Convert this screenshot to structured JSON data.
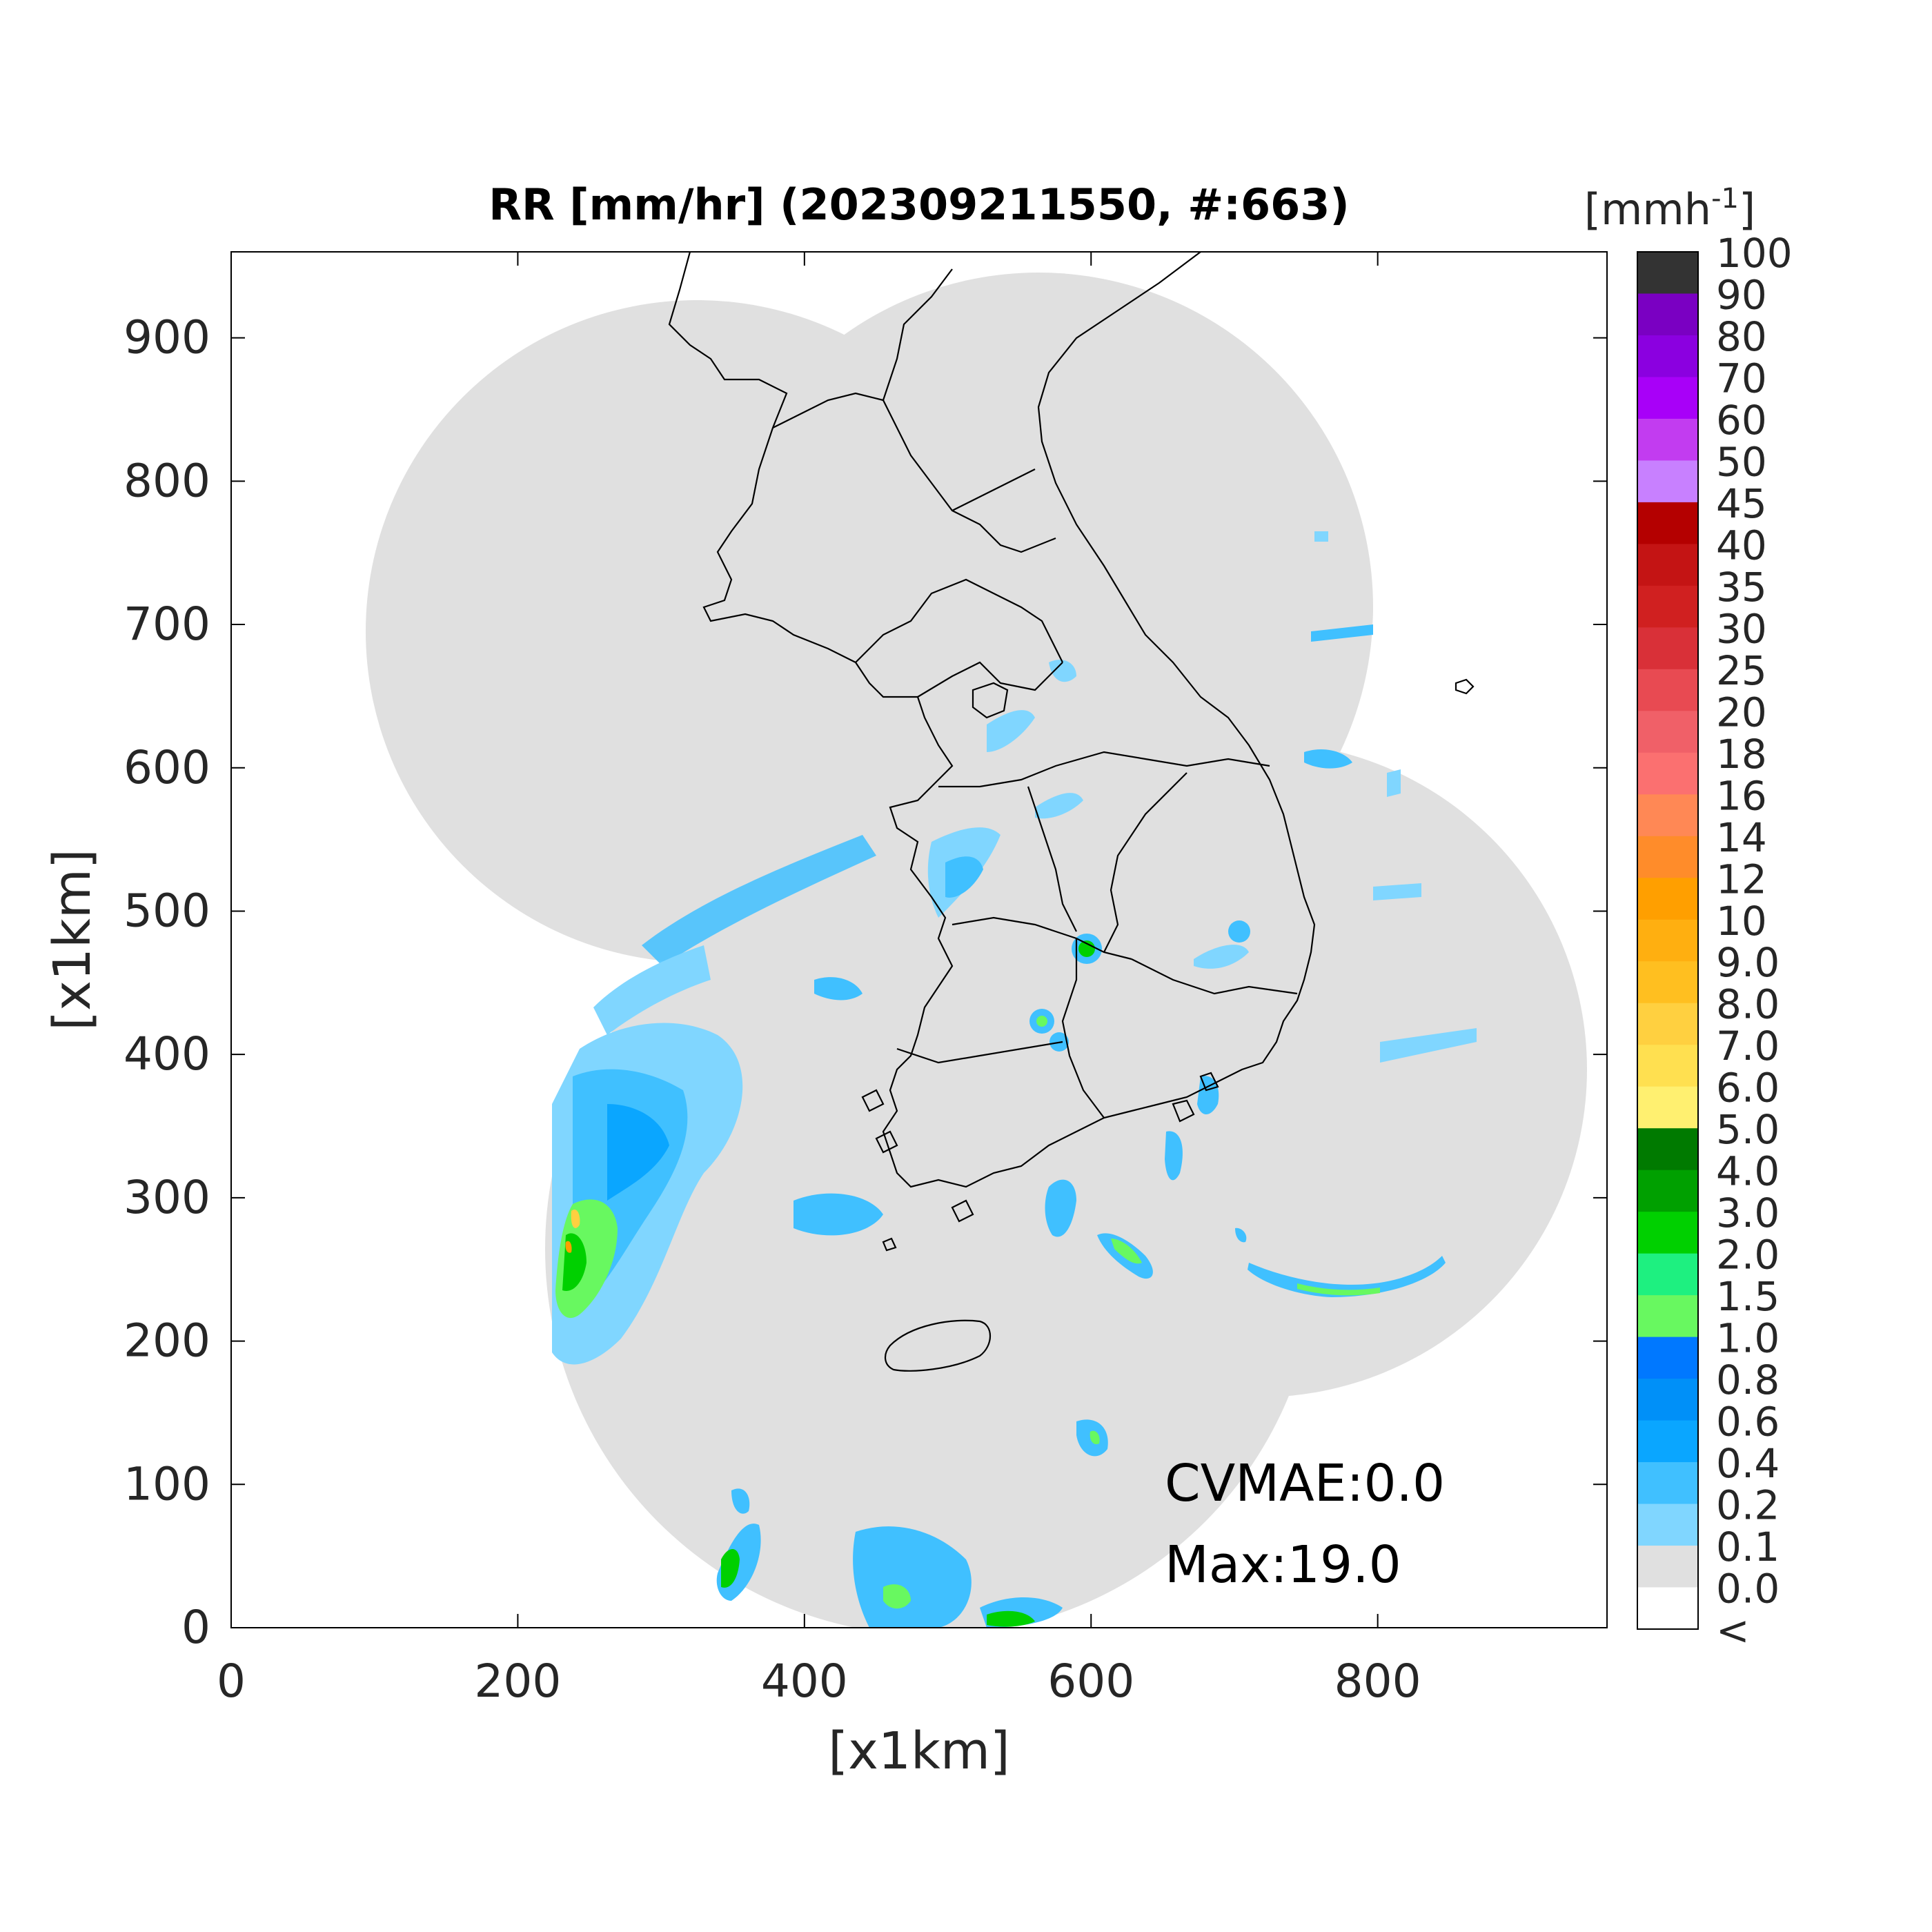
{
  "title": "RR [mm/hr] (202309211550, #:663)",
  "xlabel": "[x1km]",
  "ylabel": "[x1km]",
  "xlim": [
    0,
    960
  ],
  "ylim": [
    0,
    960
  ],
  "xticks": [
    0,
    200,
    400,
    600,
    800
  ],
  "yticks": [
    0,
    100,
    200,
    300,
    400,
    500,
    600,
    700,
    800,
    900
  ],
  "colorbar": {
    "unit": "[mmh",
    "unit_sup": "-1",
    "unit_close": "]",
    "labels": [
      "100",
      "90",
      "80",
      "70",
      "60",
      "50",
      "45",
      "40",
      "35",
      "30",
      "25",
      "20",
      "18",
      "16",
      "14",
      "12",
      "10",
      "9.0",
      "8.0",
      "7.0",
      "6.0",
      "5.0",
      "4.0",
      "3.0",
      "2.0",
      "1.5",
      "1.0",
      "0.8",
      "0.6",
      "0.4",
      "0.2",
      "0.1",
      "0.0",
      "<"
    ],
    "colors": [
      "#333333",
      "#7a00c2",
      "#8b00e0",
      "#a800f8",
      "#c23cf0",
      "#c880ff",
      "#b40000",
      "#c41414",
      "#d02020",
      "#d93038",
      "#e84a52",
      "#f06068",
      "#fb7070",
      "#ff8855",
      "#ff8c2a",
      "#ff9f00",
      "#ffaf10",
      "#ffbf20",
      "#ffd040",
      "#ffe050",
      "#fff070",
      "#007a00",
      "#00a000",
      "#00d000",
      "#1ef080",
      "#68f860",
      "#0078ff",
      "#0090f8",
      "#0aa6ff",
      "#40c0ff",
      "#80d6ff",
      "#e0e0e0",
      "#ffffff"
    ]
  },
  "stats": {
    "cvmae": "CVMAE:0.0",
    "max": "Max:19.0"
  },
  "map_colors": {
    "no_data": "#ffffff",
    "coverage": "#e0e0e0",
    "boundary": "#000000"
  }
}
